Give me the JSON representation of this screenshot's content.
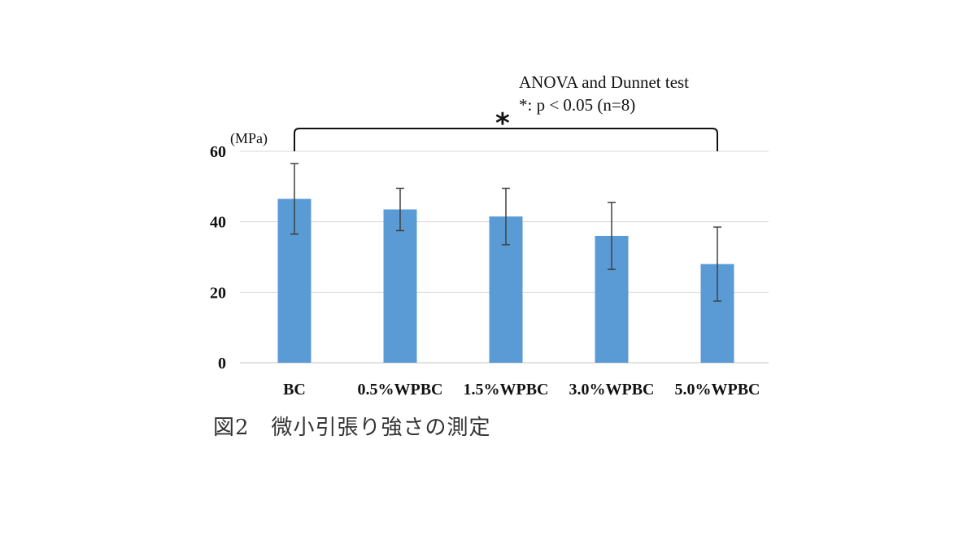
{
  "annotation": {
    "test_line": "ANOVA and Dunnet test",
    "sig_line": "*: p < 0.05 (n=8)",
    "significance_mark": "*"
  },
  "caption": "図2　微小引張り強さの測定",
  "colors": {
    "bar": "#5b9bd5",
    "grid": "#d9d9d9",
    "error": "#404040"
  },
  "chart_data": {
    "type": "bar",
    "ylabel": "(MPa)",
    "ylim": [
      0,
      60
    ],
    "yticks": [
      0,
      20,
      40,
      60
    ],
    "grid": true,
    "categories": [
      "BC",
      "0.5%WPBC",
      "1.5%WPBC",
      "3.0%WPBC",
      "5.0%WPBC"
    ],
    "values": [
      46.5,
      43.5,
      41.5,
      36.0,
      28.0
    ],
    "errors": [
      10.0,
      6.0,
      8.0,
      9.5,
      10.5
    ],
    "significance": {
      "from": "BC",
      "to": "5.0%WPBC",
      "mark": "*"
    }
  }
}
